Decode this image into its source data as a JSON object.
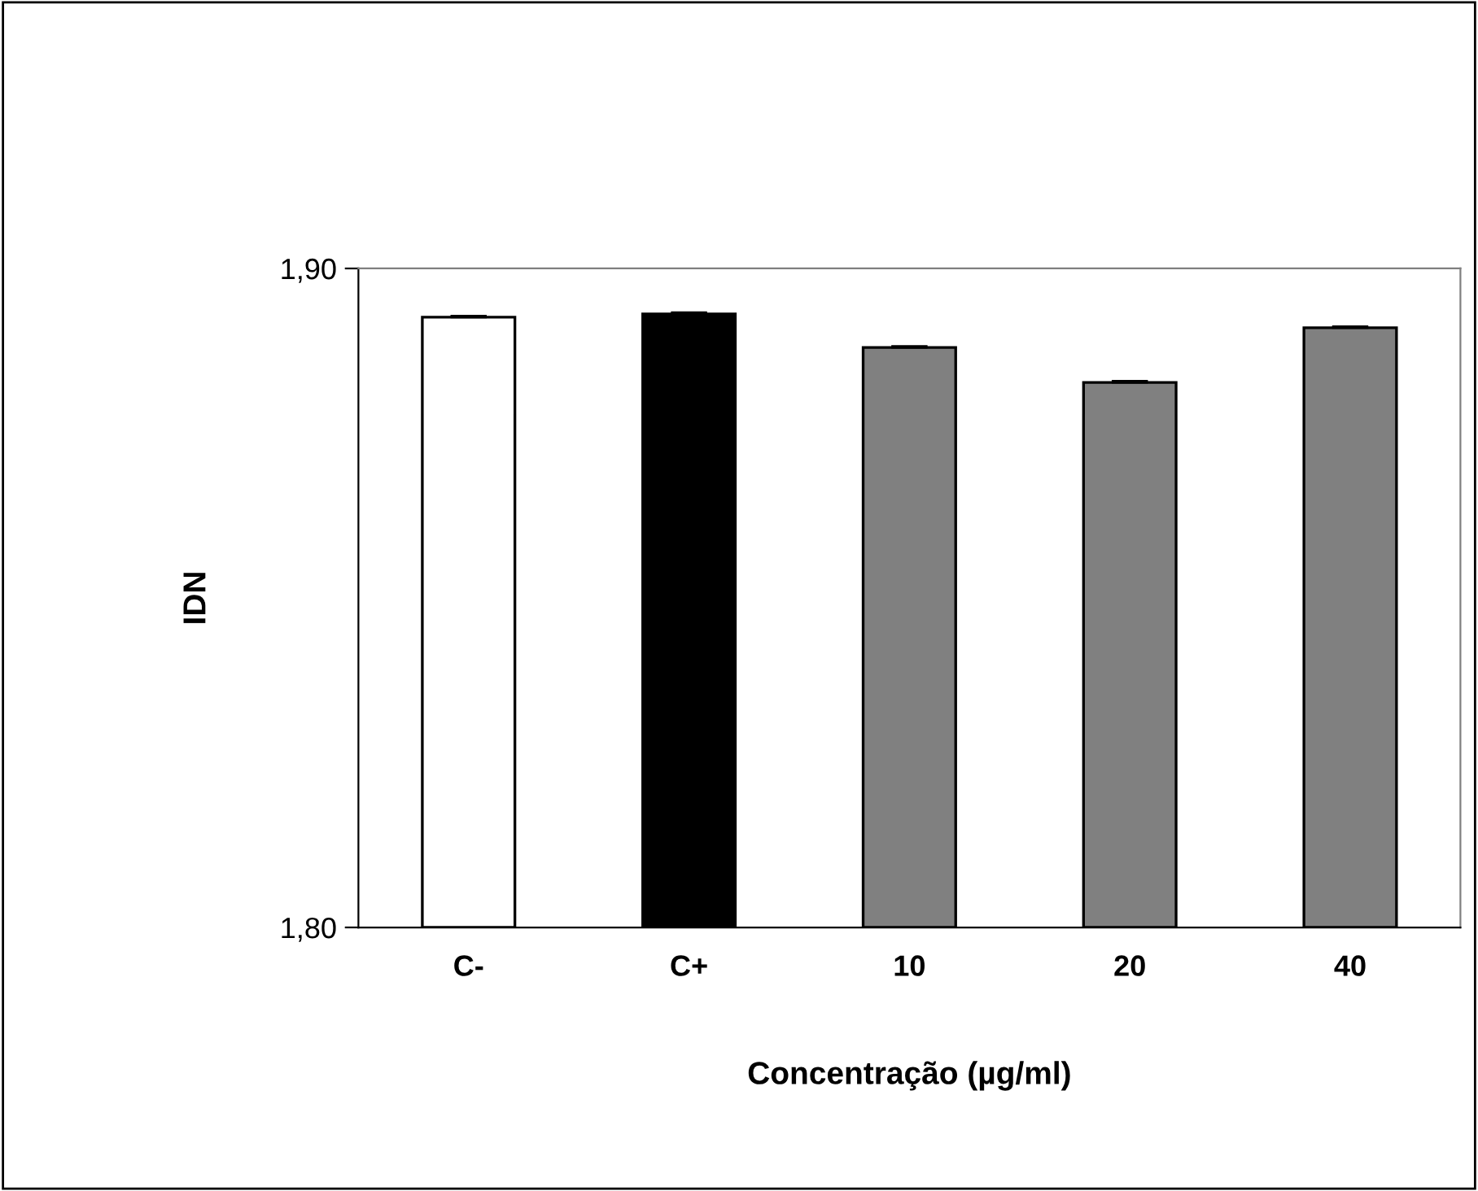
{
  "chart_data": {
    "type": "bar",
    "xlabel": "Concentração (µg/ml)",
    "ylabel": "IDN",
    "categories": [
      "C-",
      "C+",
      "10",
      "20",
      "40"
    ],
    "values": [
      1.8926,
      1.8931,
      1.888,
      1.8827,
      1.891
    ],
    "errors": [
      0.0002,
      0.0002,
      0.0002,
      0.0002,
      0.0002
    ],
    "colors": [
      "#ffffff",
      "#000000",
      "#808080",
      "#808080",
      "#808080"
    ],
    "ylim": [
      1.8,
      1.9
    ],
    "yticks": [
      {
        "value": 1.8,
        "label": "1,80"
      },
      {
        "value": 1.9,
        "label": "1,90"
      }
    ],
    "grid": false,
    "legend": false
  }
}
